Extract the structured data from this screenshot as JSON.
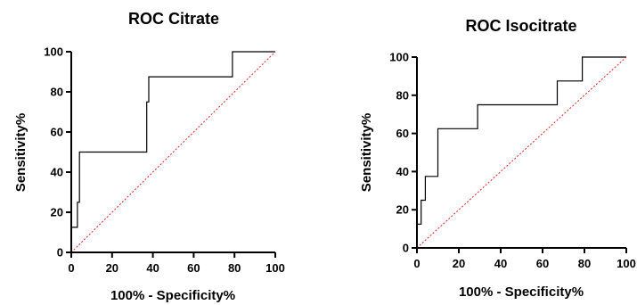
{
  "chart_data": [
    {
      "type": "line",
      "title": "ROC Citrate",
      "xlabel": "100% - Specificity%",
      "ylabel": "Sensitivity%",
      "xlim": [
        0,
        100
      ],
      "ylim": [
        0,
        100
      ],
      "xticks": [
        0,
        20,
        40,
        60,
        80,
        100
      ],
      "yticks": [
        0,
        20,
        40,
        60,
        80,
        100
      ],
      "xtick_labels": [
        "0",
        "20",
        "40",
        "60",
        "80",
        "100"
      ],
      "ytick_labels": [
        "0",
        "20",
        "40",
        "60",
        "80",
        "100"
      ],
      "grid": false,
      "series": [
        {
          "color": "#000000",
          "x": [
            0,
            0,
            3,
            3,
            4,
            4,
            37,
            37,
            38,
            38,
            79,
            79,
            100
          ],
          "y": [
            0,
            12.5,
            12.5,
            25,
            25,
            50,
            50,
            75,
            75,
            87.5,
            87.5,
            100,
            100
          ]
        },
        {
          "color": "#e32222",
          "style": "dotted",
          "x": [
            0,
            100
          ],
          "y": [
            0,
            100
          ]
        }
      ]
    },
    {
      "type": "line",
      "title": "ROC Isocitrate",
      "xlabel": "100% - Specificity%",
      "ylabel": "Sensitivity%",
      "xlim": [
        0,
        100
      ],
      "ylim": [
        0,
        100
      ],
      "xticks": [
        0,
        20,
        40,
        60,
        80,
        100
      ],
      "yticks": [
        0,
        20,
        40,
        60,
        80,
        100
      ],
      "xtick_labels": [
        "0",
        "20",
        "40",
        "60",
        "80",
        "100"
      ],
      "ytick_labels": [
        "0",
        "20",
        "40",
        "60",
        "80",
        "100"
      ],
      "grid": false,
      "series": [
        {
          "color": "#000000",
          "x": [
            0,
            0,
            2,
            2,
            4,
            4,
            10,
            10,
            29,
            29,
            67,
            67,
            79,
            79,
            100
          ],
          "y": [
            0,
            12.5,
            12.5,
            25,
            25,
            37.5,
            37.5,
            62.5,
            62.5,
            75,
            75,
            87.5,
            87.5,
            100,
            100
          ]
        },
        {
          "color": "#e32222",
          "style": "dotted",
          "x": [
            0,
            100
          ],
          "y": [
            0,
            100
          ]
        }
      ]
    }
  ]
}
